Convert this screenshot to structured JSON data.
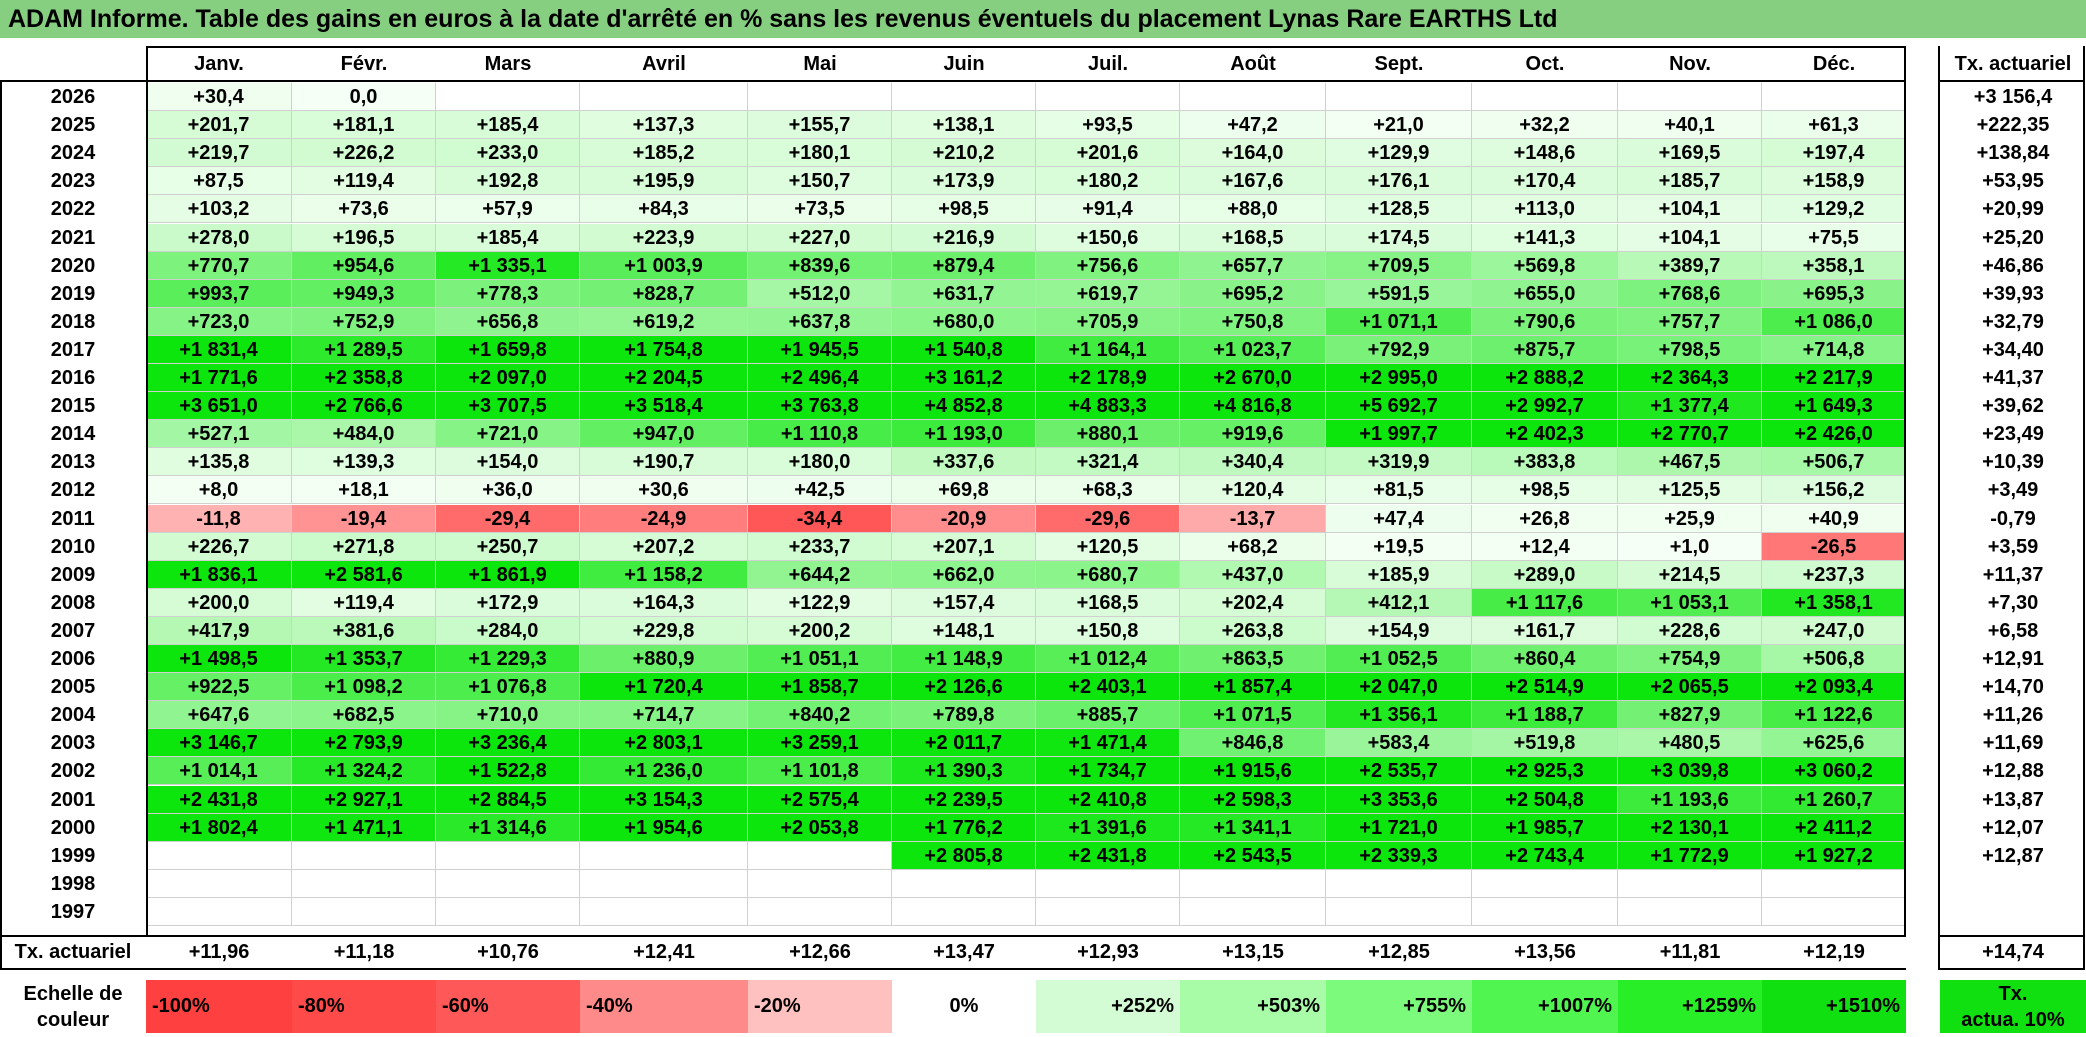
{
  "title": "ADAM Informe. Table des gains en euros à la date d'arrêté en % sans les revenus éventuels du placement Lynas Rare EARTHS Ltd",
  "months": [
    "Janv.",
    "Févr.",
    "Mars",
    "Avril",
    "Mai",
    "Juin",
    "Juil.",
    "Août",
    "Sept.",
    "Oct.",
    "Nov.",
    "Déc."
  ],
  "tx_header": "Tx. actuariel",
  "rows": [
    {
      "year": "2026",
      "values": [
        "+30,4",
        "0,0",
        "",
        "",
        "",
        "",
        "",
        "",
        "",
        "",
        "",
        ""
      ],
      "tx": "+3 156,4"
    },
    {
      "year": "2025",
      "values": [
        "+201,7",
        "+181,1",
        "+185,4",
        "+137,3",
        "+155,7",
        "+138,1",
        "+93,5",
        "+47,2",
        "+21,0",
        "+32,2",
        "+40,1",
        "+61,3"
      ],
      "tx": "+222,35"
    },
    {
      "year": "2024",
      "values": [
        "+219,7",
        "+226,2",
        "+233,0",
        "+185,2",
        "+180,1",
        "+210,2",
        "+201,6",
        "+164,0",
        "+129,9",
        "+148,6",
        "+169,5",
        "+197,4"
      ],
      "tx": "+138,84"
    },
    {
      "year": "2023",
      "values": [
        "+87,5",
        "+119,4",
        "+192,8",
        "+195,9",
        "+150,7",
        "+173,9",
        "+180,2",
        "+167,6",
        "+176,1",
        "+170,4",
        "+185,7",
        "+158,9"
      ],
      "tx": "+53,95"
    },
    {
      "year": "2022",
      "values": [
        "+103,2",
        "+73,6",
        "+57,9",
        "+84,3",
        "+73,5",
        "+98,5",
        "+91,4",
        "+88,0",
        "+128,5",
        "+113,0",
        "+104,1",
        "+129,2"
      ],
      "tx": "+20,99"
    },
    {
      "year": "2021",
      "values": [
        "+278,0",
        "+196,5",
        "+185,4",
        "+223,9",
        "+227,0",
        "+216,9",
        "+150,6",
        "+168,5",
        "+174,5",
        "+141,3",
        "+104,1",
        "+75,5"
      ],
      "tx": "+25,20"
    },
    {
      "year": "2020",
      "values": [
        "+770,7",
        "+954,6",
        "+1 335,1",
        "+1 003,9",
        "+839,6",
        "+879,4",
        "+756,6",
        "+657,7",
        "+709,5",
        "+569,8",
        "+389,7",
        "+358,1"
      ],
      "tx": "+46,86"
    },
    {
      "year": "2019",
      "values": [
        "+993,7",
        "+949,3",
        "+778,3",
        "+828,7",
        "+512,0",
        "+631,7",
        "+619,7",
        "+695,2",
        "+591,5",
        "+655,0",
        "+768,6",
        "+695,3"
      ],
      "tx": "+39,93"
    },
    {
      "year": "2018",
      "values": [
        "+723,0",
        "+752,9",
        "+656,8",
        "+619,2",
        "+637,8",
        "+680,0",
        "+705,9",
        "+750,8",
        "+1 071,1",
        "+790,6",
        "+757,7",
        "+1 086,0"
      ],
      "tx": "+32,79"
    },
    {
      "year": "2017",
      "values": [
        "+1 831,4",
        "+1 289,5",
        "+1 659,8",
        "+1 754,8",
        "+1 945,5",
        "+1 540,8",
        "+1 164,1",
        "+1 023,7",
        "+792,9",
        "+875,7",
        "+798,5",
        "+714,8"
      ],
      "tx": "+34,40"
    },
    {
      "year": "2016",
      "values": [
        "+1 771,6",
        "+2 358,8",
        "+2 097,0",
        "+2 204,5",
        "+2 496,4",
        "+3 161,2",
        "+2 178,9",
        "+2 670,0",
        "+2 995,0",
        "+2 888,2",
        "+2 364,3",
        "+2 217,9"
      ],
      "tx": "+41,37"
    },
    {
      "year": "2015",
      "values": [
        "+3 651,0",
        "+2 766,6",
        "+3 707,5",
        "+3 518,4",
        "+3 763,8",
        "+4 852,8",
        "+4 883,3",
        "+4 816,8",
        "+5 692,7",
        "+2 992,7",
        "+1 377,4",
        "+1 649,3"
      ],
      "tx": "+39,62"
    },
    {
      "year": "2014",
      "values": [
        "+527,1",
        "+484,0",
        "+721,0",
        "+947,0",
        "+1 110,8",
        "+1 193,0",
        "+880,1",
        "+919,6",
        "+1 997,7",
        "+2 402,3",
        "+2 770,7",
        "+2 426,0"
      ],
      "tx": "+23,49"
    },
    {
      "year": "2013",
      "values": [
        "+135,8",
        "+139,3",
        "+154,0",
        "+190,7",
        "+180,0",
        "+337,6",
        "+321,4",
        "+340,4",
        "+319,9",
        "+383,8",
        "+467,5",
        "+506,7"
      ],
      "tx": "+10,39"
    },
    {
      "year": "2012",
      "values": [
        "+8,0",
        "+18,1",
        "+36,0",
        "+30,6",
        "+42,5",
        "+69,8",
        "+68,3",
        "+120,4",
        "+81,5",
        "+98,5",
        "+125,5",
        "+156,2"
      ],
      "tx": "+3,49"
    },
    {
      "year": "2011",
      "values": [
        "-11,8",
        "-19,4",
        "-29,4",
        "-24,9",
        "-34,4",
        "-20,9",
        "-29,6",
        "-13,7",
        "+47,4",
        "+26,8",
        "+25,9",
        "+40,9"
      ],
      "tx": "-0,79"
    },
    {
      "year": "2010",
      "values": [
        "+226,7",
        "+271,8",
        "+250,7",
        "+207,2",
        "+233,7",
        "+207,1",
        "+120,5",
        "+68,2",
        "+19,5",
        "+12,4",
        "+1,0",
        "-26,5"
      ],
      "tx": "+3,59"
    },
    {
      "year": "2009",
      "values": [
        "+1 836,1",
        "+2 581,6",
        "+1 861,9",
        "+1 158,2",
        "+644,2",
        "+662,0",
        "+680,7",
        "+437,0",
        "+185,9",
        "+289,0",
        "+214,5",
        "+237,3"
      ],
      "tx": "+11,37"
    },
    {
      "year": "2008",
      "values": [
        "+200,0",
        "+119,4",
        "+172,9",
        "+164,3",
        "+122,9",
        "+157,4",
        "+168,5",
        "+202,4",
        "+412,1",
        "+1 117,6",
        "+1 053,1",
        "+1 358,1"
      ],
      "tx": "+7,30"
    },
    {
      "year": "2007",
      "values": [
        "+417,9",
        "+381,6",
        "+284,0",
        "+229,8",
        "+200,2",
        "+148,1",
        "+150,8",
        "+263,8",
        "+154,9",
        "+161,7",
        "+228,6",
        "+247,0"
      ],
      "tx": "+6,58"
    },
    {
      "year": "2006",
      "values": [
        "+1 498,5",
        "+1 353,7",
        "+1 229,3",
        "+880,9",
        "+1 051,1",
        "+1 148,9",
        "+1 012,4",
        "+863,5",
        "+1 052,5",
        "+860,4",
        "+754,9",
        "+506,8"
      ],
      "tx": "+12,91"
    },
    {
      "year": "2005",
      "values": [
        "+922,5",
        "+1 098,2",
        "+1 076,8",
        "+1 720,4",
        "+1 858,7",
        "+2 126,6",
        "+2 403,1",
        "+1 857,4",
        "+2 047,0",
        "+2 514,9",
        "+2 065,5",
        "+2 093,4"
      ],
      "tx": "+14,70"
    },
    {
      "year": "2004",
      "values": [
        "+647,6",
        "+682,5",
        "+710,0",
        "+714,7",
        "+840,2",
        "+789,8",
        "+885,7",
        "+1 071,5",
        "+1 356,1",
        "+1 188,7",
        "+827,9",
        "+1 122,6"
      ],
      "tx": "+11,26"
    },
    {
      "year": "2003",
      "values": [
        "+3 146,7",
        "+2 793,9",
        "+3 236,4",
        "+2 803,1",
        "+3 259,1",
        "+2 011,7",
        "+1 471,4",
        "+846,8",
        "+583,4",
        "+519,8",
        "+480,5",
        "+625,6"
      ],
      "tx": "+11,69"
    },
    {
      "year": "2002",
      "values": [
        "+1 014,1",
        "+1 324,2",
        "+1 522,8",
        "+1 236,0",
        "+1 101,8",
        "+1 390,3",
        "+1 734,7",
        "+1 915,6",
        "+2 535,7",
        "+2 925,3",
        "+3 039,8",
        "+3 060,2"
      ],
      "tx": "+12,88"
    },
    {
      "year": "2001",
      "values": [
        "+2 431,8",
        "+2 927,1",
        "+2 884,5",
        "+3 154,3",
        "+2 575,4",
        "+2 239,5",
        "+2 410,8",
        "+2 598,3",
        "+3 353,6",
        "+2 504,8",
        "+1 193,6",
        "+1 260,7"
      ],
      "tx": "+13,87"
    },
    {
      "year": "2000",
      "values": [
        "+1 802,4",
        "+1 471,1",
        "+1 314,6",
        "+1 954,6",
        "+2 053,8",
        "+1 776,2",
        "+1 391,6",
        "+1 341,1",
        "+1 721,0",
        "+1 985,7",
        "+2 130,1",
        "+2 411,2"
      ],
      "tx": "+12,07"
    },
    {
      "year": "1999",
      "values": [
        "",
        "",
        "",
        "",
        "",
        "+2 805,8",
        "+2 431,8",
        "+2 543,5",
        "+2 339,3",
        "+2 743,4",
        "+1 772,9",
        "+1 927,2"
      ],
      "tx": "+12,87"
    },
    {
      "year": "1998",
      "values": [
        "",
        "",
        "",
        "",
        "",
        "",
        "",
        "",
        "",
        "",
        "",
        ""
      ],
      "tx": ""
    },
    {
      "year": "1997",
      "values": [
        "",
        "",
        "",
        "",
        "",
        "",
        "",
        "",
        "",
        "",
        "",
        ""
      ],
      "tx": ""
    }
  ],
  "footer": {
    "label": "Tx. actuariel",
    "values": [
      "+11,96",
      "+11,18",
      "+10,76",
      "+12,41",
      "+12,66",
      "+13,47",
      "+12,93",
      "+13,15",
      "+12,85",
      "+13,56",
      "+11,81",
      "+12,19"
    ],
    "total": "+14,74"
  },
  "scale": {
    "label_line1": "Echelle de",
    "label_line2": "couleur",
    "items": [
      {
        "text": "-100%",
        "color": "#ff4040",
        "align": "left"
      },
      {
        "text": "-80%",
        "color": "#ff4a4a",
        "align": "left"
      },
      {
        "text": "-60%",
        "color": "#ff5858",
        "align": "left"
      },
      {
        "text": "-40%",
        "color": "#ff8a8a",
        "align": "left"
      },
      {
        "text": "-20%",
        "color": "#ffc0c0",
        "align": "left"
      },
      {
        "text": "0%",
        "color": "#ffffff",
        "align": "center"
      },
      {
        "text": "+252%",
        "color": "#d4fcd4",
        "align": "right"
      },
      {
        "text": "+503%",
        "color": "#a8fca8",
        "align": "right"
      },
      {
        "text": "+755%",
        "color": "#7cfa7c",
        "align": "right"
      },
      {
        "text": "+1007%",
        "color": "#50f550",
        "align": "right"
      },
      {
        "text": "+1259%",
        "color": "#28ee28",
        "align": "right"
      },
      {
        "text": "+1510%",
        "color": "#10e010",
        "align": "right"
      }
    ],
    "tx_line1": "Tx.",
    "tx_line2": "actua. 10%",
    "tx_color": "#10e010"
  }
}
